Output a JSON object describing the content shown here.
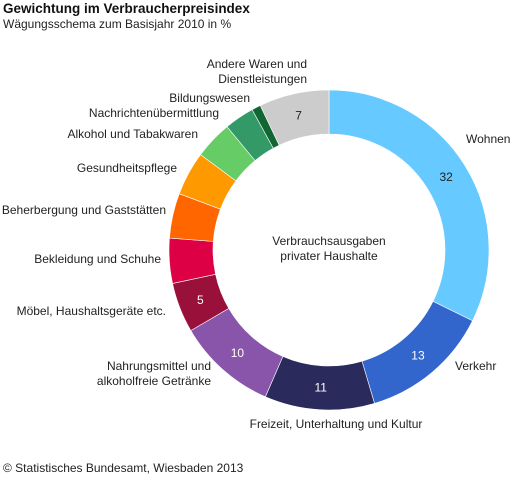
{
  "title": "Gewichtung im Verbraucherpreisindex",
  "subtitle": "Wägungsschema zum Basisjahr 2010 in %",
  "source": "© Statistisches Bundesamt, Wiesbaden 2013",
  "chart_data": {
    "type": "pie",
    "donut": true,
    "center_label": [
      "Verbrauchsausgaben",
      "privater Haushalte"
    ],
    "slices": [
      {
        "label": [
          "Wohnen"
        ],
        "value": 32,
        "value_label": "32",
        "color": "#66c9ff",
        "value_color": "#222222"
      },
      {
        "label": [
          "Verkehr"
        ],
        "value": 13,
        "value_label": "13",
        "color": "#3366cc",
        "value_color": "#ffffff"
      },
      {
        "label": [
          "Freizeit, Unterhaltung und Kultur"
        ],
        "value": 11,
        "value_label": "11",
        "color": "#2a2a5c",
        "value_color": "#ffffff"
      },
      {
        "label": [
          "Nahrungsmittel und",
          "alkoholfreie Getränke"
        ],
        "value": 10,
        "value_label": "10",
        "color": "#8855aa",
        "value_color": "#ffffff"
      },
      {
        "label": [
          "Möbel, Haushaltsgeräte etc."
        ],
        "value": 5,
        "value_label": "5",
        "color": "#99113a",
        "value_color": "#ffffff"
      },
      {
        "label": [
          "Bekleidung und Schuhe"
        ],
        "value": 4.5,
        "value_label": "",
        "color": "#dd0044",
        "value_color": "#ffffff"
      },
      {
        "label": [
          "Beherbergung und Gaststätten"
        ],
        "value": 4.5,
        "value_label": "",
        "color": "#ff6600",
        "value_color": "#ffffff"
      },
      {
        "label": [
          "Gesundheitspflege"
        ],
        "value": 4.4,
        "value_label": "",
        "color": "#ff9900",
        "value_color": "#222222"
      },
      {
        "label": [
          "Alkohol und Tabakwaren"
        ],
        "value": 3.8,
        "value_label": "",
        "color": "#66cc66",
        "value_color": "#222222"
      },
      {
        "label": [
          "Nachrichtenübermittlung"
        ],
        "value": 3.0,
        "value_label": "",
        "color": "#339966",
        "value_color": "#ffffff"
      },
      {
        "label": [
          "Bildungswesen"
        ],
        "value": 0.9,
        "value_label": "",
        "color": "#116633",
        "value_color": "#ffffff"
      },
      {
        "label": [
          "Andere Waren und",
          "Dienstleistungen"
        ],
        "value": 7,
        "value_label": "7",
        "color": "#cccccc",
        "value_color": "#222222"
      }
    ]
  }
}
